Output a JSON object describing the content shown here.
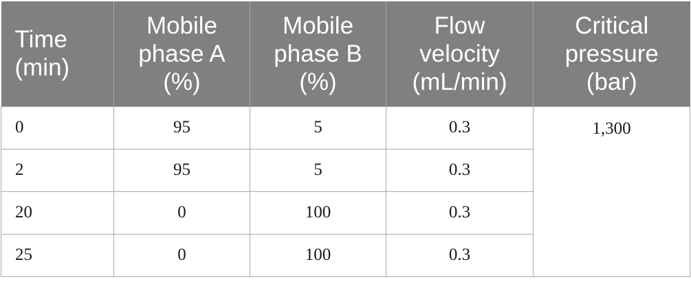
{
  "table": {
    "headers": [
      "Time\n(min)",
      "Mobile\nphase A\n(%)",
      "Mobile\nphase B\n(%)",
      "Flow\nvelocity\n(mL/min)",
      "Critical\npressure\n(bar)"
    ],
    "rows": [
      {
        "time": "0",
        "phase_a": "95",
        "phase_b": "5",
        "flow": "0.3"
      },
      {
        "time": "2",
        "phase_a": "95",
        "phase_b": "5",
        "flow": "0.3"
      },
      {
        "time": "20",
        "phase_a": "0",
        "phase_b": "100",
        "flow": "0.3"
      },
      {
        "time": "25",
        "phase_a": "0",
        "phase_b": "100",
        "flow": "0.3"
      }
    ],
    "critical_pressure": "1,300"
  }
}
